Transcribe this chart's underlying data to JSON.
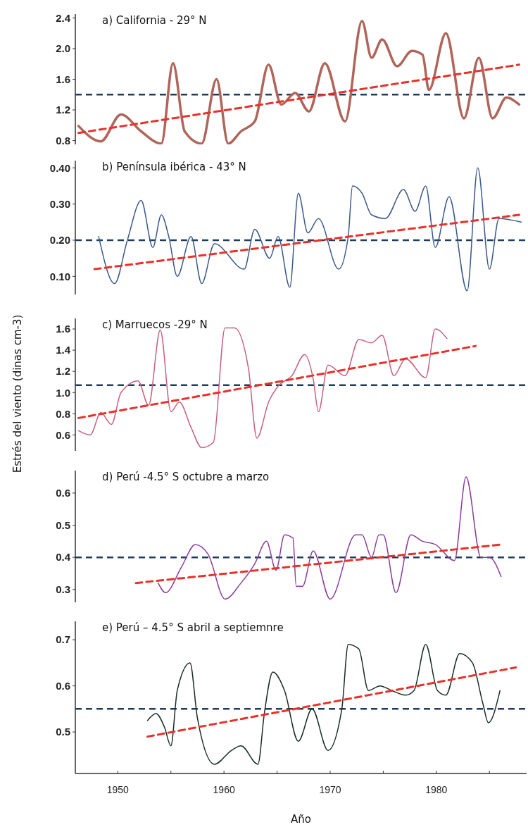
{
  "chart_data": [
    {
      "type": "line",
      "title": "a) California - 29° N",
      "xlim": [
        1946,
        1988.5
      ],
      "ylim": [
        0.75,
        2.45
      ],
      "yticks": [
        0.8,
        1.2,
        1.6,
        {
          "value": 2,
          "label": "2.0"
        },
        2.4
      ],
      "tick_labels": "y",
      "series": [
        {
          "color": "#b0655a",
          "x": [
            1946.3,
            1948.4,
            1950.3,
            1952.2,
            1954.1,
            1955.2,
            1956.3,
            1957.9,
            1959.3,
            1960.4,
            1961.6,
            1962.9,
            1964.2,
            1965.4,
            1966.7,
            1968.0,
            1969.5,
            1971.4,
            1973.0,
            1973.9,
            1974.9,
            1976.3,
            1977.7,
            1978.7,
            1979.3,
            1980.9,
            1982.6,
            1984.0,
            1985.3,
            1986.6,
            1987.8
          ],
          "values": [
            0.99,
            0.79,
            1.14,
            0.92,
            0.76,
            1.81,
            0.92,
            0.76,
            1.6,
            0.76,
            0.92,
            1.05,
            1.79,
            1.27,
            1.42,
            1.18,
            1.81,
            1.05,
            2.36,
            1.88,
            2.12,
            1.77,
            1.97,
            1.92,
            1.46,
            2.2,
            1.09,
            1.88,
            1.09,
            1.36,
            1.27
          ]
        },
        {
          "type": "line",
          "color": "#e8312a",
          "line_style": "dashed",
          "x": [
            1946.3,
            1987.8
          ],
          "values": [
            0.9,
            1.79
          ]
        }
      ],
      "ref_lines": [
        {
          "axis": "y",
          "value": 1.4,
          "color": "#1f3d5c",
          "line_style": "dashed"
        }
      ]
    },
    {
      "type": "line",
      "title": "b) Península ibérica - 43° N",
      "xlim": [
        1946,
        1988.5
      ],
      "ylim": [
        0.05,
        0.42
      ],
      "yticks": [
        {
          "value": 0.1,
          "label": "0.10"
        },
        {
          "value": 0.2,
          "label": "0.20"
        },
        {
          "value": 0.3,
          "label": "0.30"
        },
        {
          "value": 0.4,
          "label": "0.40"
        }
      ],
      "tick_labels": "y",
      "series": [
        {
          "color": "#3b5a8c",
          "x": [
            1948.2,
            1949.7,
            1950.9,
            1952.2,
            1953.3,
            1954.1,
            1954.8,
            1955.6,
            1956.9,
            1957.9,
            1959.1,
            1961.9,
            1962.9,
            1964.3,
            1965.1,
            1966.2,
            1967.0,
            1967.9,
            1968.9,
            1970.8,
            1971.7,
            1972.1,
            1973.0,
            1973.9,
            1975.2,
            1976.9,
            1978.0,
            1979.0,
            1979.9,
            1981.2,
            1982.9,
            1983.9,
            1985.0,
            1985.9,
            1988.0
          ],
          "values": [
            0.21,
            0.08,
            0.2,
            0.31,
            0.18,
            0.27,
            0.21,
            0.1,
            0.21,
            0.08,
            0.19,
            0.12,
            0.23,
            0.15,
            0.21,
            0.07,
            0.33,
            0.22,
            0.26,
            0.12,
            0.21,
            0.35,
            0.33,
            0.27,
            0.26,
            0.34,
            0.28,
            0.35,
            0.18,
            0.32,
            0.06,
            0.4,
            0.12,
            0.26,
            0.25
          ]
        },
        {
          "type": "line",
          "color": "#e8312a",
          "line_style": "dashed",
          "x": [
            1947.8,
            1987.8
          ],
          "values": [
            0.12,
            0.27
          ]
        }
      ],
      "ref_lines": [
        {
          "axis": "y",
          "value": 0.2,
          "color": "#1f3d5c",
          "line_style": "dashed"
        }
      ]
    },
    {
      "type": "line",
      "title": "c) Marruecos -29° N",
      "ylabel": "Estrés del viento (dinas cm-3)",
      "xlim": [
        1946,
        1988.5
      ],
      "ylim": [
        0.45,
        1.7
      ],
      "yticks": [
        0.6,
        0.8,
        {
          "value": 1,
          "label": "1.0"
        },
        1.2,
        1.4,
        1.6
      ],
      "tick_labels": "y",
      "series": [
        {
          "color": "#c9607f",
          "x": [
            1946.3,
            1947.4,
            1948.4,
            1949.4,
            1950.3,
            1951.9,
            1952.9,
            1954.0,
            1955.0,
            1955.8,
            1956.9,
            1957.9,
            1959.0,
            1960.1,
            1961.0,
            1962.3,
            1963.1,
            1964.2,
            1965.1,
            1966.4,
            1967.6,
            1968.4,
            1968.9,
            1969.8,
            1971.4,
            1972.7,
            1973.9,
            1974.9,
            1976.0,
            1977.1,
            1979.0,
            1979.9,
            1981.0
          ],
          "values": [
            0.64,
            0.6,
            0.81,
            0.7,
            1.0,
            1.11,
            0.88,
            1.59,
            0.82,
            0.91,
            0.67,
            0.48,
            0.53,
            1.61,
            1.61,
            1.23,
            0.57,
            0.91,
            1.06,
            1.16,
            1.36,
            1.13,
            0.82,
            1.26,
            1.16,
            1.5,
            1.47,
            1.54,
            1.16,
            1.32,
            1.14,
            1.6,
            1.51
          ]
        },
        {
          "type": "line",
          "color": "#e8312a",
          "line_style": "dashed",
          "x": [
            1946.3,
            1983.7
          ],
          "values": [
            0.76,
            1.44
          ]
        }
      ],
      "ref_lines": [
        {
          "axis": "y",
          "value": 1.07,
          "color": "#1f3d5c",
          "line_style": "dashed"
        }
      ]
    },
    {
      "type": "line",
      "title": "d) Perú -4.5° S  octubre a marzo",
      "xlim": [
        1946,
        1988.5
      ],
      "ylim": [
        0.26,
        0.67
      ],
      "yticks": [
        0.3,
        0.4,
        0.5,
        0.6
      ],
      "tick_labels": "y",
      "series": [
        {
          "color": "#8a3f9c",
          "x": [
            1953.8,
            1954.5,
            1956.0,
            1957.3,
            1958.5,
            1960.1,
            1961.6,
            1962.9,
            1964.0,
            1964.9,
            1965.7,
            1966.5,
            1966.8,
            1967.4,
            1968.4,
            1970.0,
            1972.4,
            1973.0,
            1973.9,
            1974.6,
            1975.0,
            1976.2,
            1977.6,
            1978.7,
            1979.9,
            1981.7,
            1982.8,
            1984.2,
            1985.0,
            1986.1
          ],
          "values": [
            0.32,
            0.29,
            0.37,
            0.44,
            0.41,
            0.27,
            0.32,
            0.38,
            0.45,
            0.36,
            0.47,
            0.46,
            0.31,
            0.31,
            0.42,
            0.27,
            0.47,
            0.47,
            0.4,
            0.47,
            0.47,
            0.29,
            0.47,
            0.45,
            0.44,
            0.39,
            0.65,
            0.4,
            0.4,
            0.34
          ]
        },
        {
          "type": "line",
          "color": "#e8312a",
          "line_style": "dashed",
          "x": [
            1951.7,
            1986.2
          ],
          "values": [
            0.32,
            0.44
          ]
        }
      ],
      "ref_lines": [
        {
          "axis": "y",
          "value": 0.4,
          "color": "#1f3d5c",
          "line_style": "dashed"
        }
      ]
    },
    {
      "type": "line",
      "title": "e) Perú – 4.5° S  abril a septiemnre",
      "xlabel": "Año",
      "xlim": [
        1946,
        1988.5
      ],
      "xticks": [
        1950,
        {
          "value": 1955,
          "label": null
        },
        1960,
        {
          "value": 1965,
          "label": null
        },
        1970,
        {
          "value": 1975,
          "label": null
        },
        1980,
        {
          "value": 1985,
          "label": null
        }
      ],
      "ylim": [
        0.41,
        0.74
      ],
      "yticks": [
        0.5,
        0.6,
        0.7
      ],
      "series": [
        {
          "color": "#1a2e24",
          "x": [
            1952.8,
            1953.6,
            1954.4,
            1955.0,
            1955.6,
            1956.8,
            1957.5,
            1959.1,
            1960.7,
            1961.6,
            1963.2,
            1963.8,
            1964.6,
            1965.7,
            1967.0,
            1968.3,
            1969.8,
            1971.1,
            1971.7,
            1972.7,
            1973.6,
            1974.7,
            1975.8,
            1977.1,
            1977.9,
            1979.0,
            1980.1,
            1980.9,
            1982.2,
            1983.4,
            1984.4,
            1984.9,
            1986.0
          ],
          "values": [
            0.525,
            0.54,
            0.51,
            0.47,
            0.59,
            0.65,
            0.53,
            0.43,
            0.46,
            0.47,
            0.43,
            0.54,
            0.63,
            0.59,
            0.48,
            0.55,
            0.46,
            0.55,
            0.69,
            0.68,
            0.59,
            0.6,
            0.59,
            0.58,
            0.59,
            0.69,
            0.59,
            0.58,
            0.67,
            0.65,
            0.56,
            0.52,
            0.59
          ]
        },
        {
          "type": "line",
          "color": "#e8312a",
          "line_style": "dashed",
          "x": [
            1952.8,
            1987.5
          ],
          "values": [
            0.49,
            0.64
          ]
        }
      ],
      "ref_lines": [
        {
          "axis": "y",
          "value": 0.55,
          "color": "#1f3d5c",
          "line_style": "dashed"
        }
      ]
    }
  ]
}
